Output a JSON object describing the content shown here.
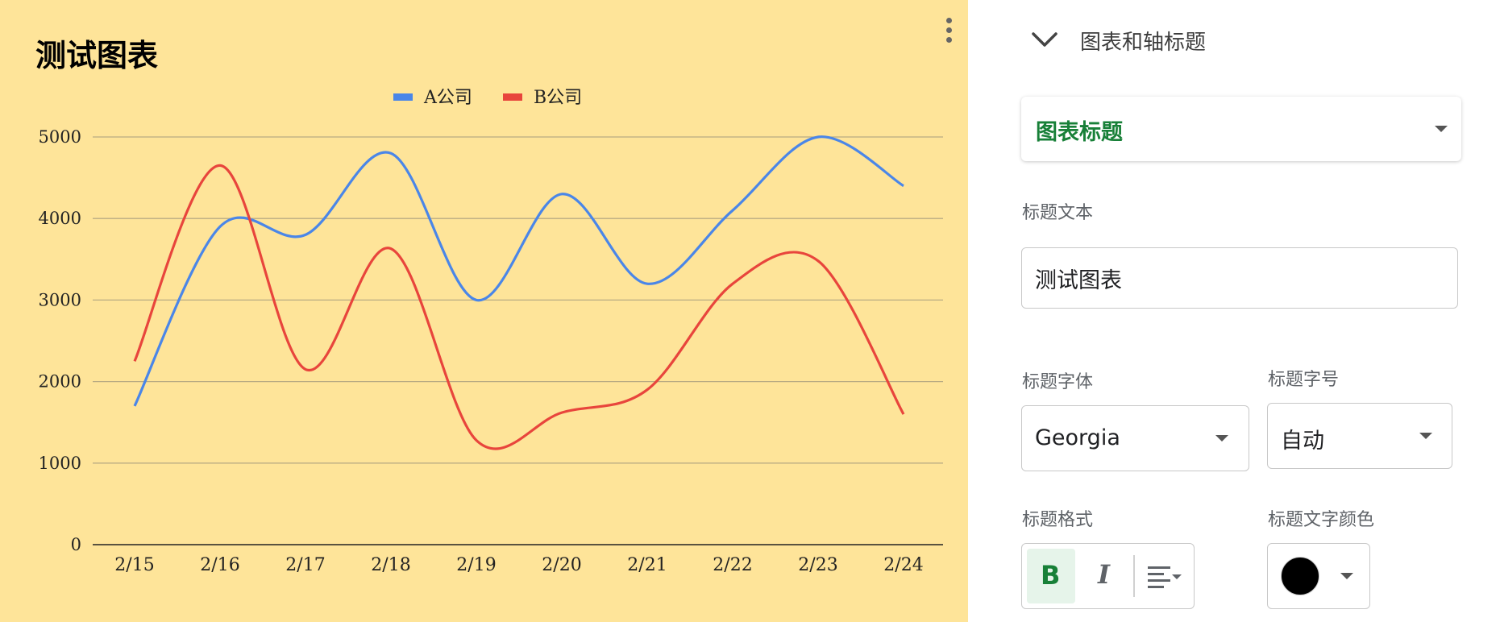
{
  "chart_data": {
    "type": "line",
    "title": "测试图表",
    "categories": [
      "2/15",
      "2/16",
      "2/17",
      "2/18",
      "2/19",
      "2/20",
      "2/21",
      "2/22",
      "2/23",
      "2/24"
    ],
    "series": [
      {
        "name": "A公司",
        "color": "#4a86e8",
        "values": [
          1700,
          3900,
          3800,
          4800,
          3000,
          4300,
          3200,
          4100,
          5000,
          4400
        ]
      },
      {
        "name": "B公司",
        "color": "#e8453c",
        "values": [
          2250,
          4650,
          2150,
          3630,
          1280,
          1620,
          1900,
          3200,
          3480,
          1600
        ]
      }
    ],
    "y_ticks": [
      "5000",
      "4000",
      "3000",
      "2000",
      "1000",
      "0"
    ],
    "ylim": [
      0,
      5000
    ],
    "grid": true,
    "legend_position": "top",
    "background_color": "#fee499"
  },
  "chart_menu": {
    "icon": "more-vert-icon"
  },
  "side_panel": {
    "section_title": "图表和轴标题",
    "chevron_icon": "chevron-down-icon",
    "title_type": "图表标题",
    "title_text_label": "标题文本",
    "title_text_value": "测试图表",
    "title_font_label": "标题字体",
    "title_font_value": "Georgia",
    "title_size_label": "标题字号",
    "title_size_value": "自动",
    "title_format_label": "标题格式",
    "bold_label": "B",
    "italic_label": "I",
    "align_icon": "align-left-icon",
    "title_color_label": "标题文字颜色",
    "title_color_value": "#000000",
    "accent_color": "#188038"
  }
}
